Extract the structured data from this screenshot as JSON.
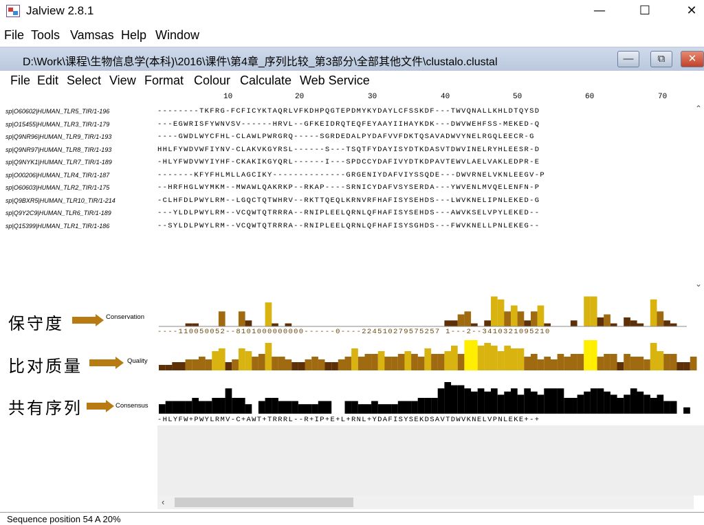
{
  "window": {
    "title": "Jalview 2.8.1",
    "controls": {
      "minimize": "—",
      "maximize": "☐",
      "close": "✕"
    }
  },
  "main_menu": [
    "File",
    "Tools",
    "Vamsas",
    "Help",
    "Window"
  ],
  "alignment_window": {
    "title": "D:\\Work\\课程\\生物信息学(本科)\\2016\\课件\\第4章_序列比较_第3部分\\全部其他文件\\clustalo.clustal",
    "controls": {
      "minimize": "—",
      "restore": "⧉",
      "close": "✕"
    },
    "menu": [
      "File",
      "Edit",
      "Select",
      "View",
      "Format",
      "Colour",
      "Calculate",
      "Web Service"
    ]
  },
  "ruler": [
    "10",
    "20",
    "30",
    "40",
    "50",
    "60",
    "70"
  ],
  "sequences": [
    {
      "name": "sp|O60602|HUMAN_TLR5_TIR/1-196",
      "seq": "--------TKFRG-FCFICYKTAQRLVFKDHPQGTEPDMYKYDAYLCFSSKDF---TWVQNALLKHLDTQYSD"
    },
    {
      "name": "sp|O15455|HUMAN_TLR3_TIR/1-179",
      "seq": "---EGWRISFYWNVSV------HRVL--GFKEIDRQTEQFEYAAYIIHAYKDK---DWVWEHFSS-MEKED-Q"
    },
    {
      "name": "sp|Q9NR96|HUMAN_TLR9_TIR/1-193",
      "seq": "----GWDLWYCFHL-CLAWLPWRGRQ-----SGRDEDALPYDAFVVFDKTQSAVADWVYNELRGQLEECR-G"
    },
    {
      "name": "sp|Q9NR97|HUMAN_TLR8_TIR/1-193",
      "seq": "HHLFYWDVWFIYNV-CLAKVKGYRSL------S---TSQTFYDAYISYDTKDASVTDWVINELRYHLEESR-D"
    },
    {
      "name": "sp|Q9NYK1|HUMAN_TLR7_TIR/1-189",
      "seq": "-HLYFWDVWYIYHF-CKAKIKGYQRL------I---SPDCCYDAFIVYDTKDPAVTEWVLAELVAKLEDPR-E"
    },
    {
      "name": "sp|O00206|HUMAN_TLR4_TIR/1-187",
      "seq": "-------KFYFHLMLLAGCIKY--------------GRGENIYDAFVIYSSQDE---DWVRNELVKNLEEGV-P"
    },
    {
      "name": "sp|O60603|HUMAN_TLR2_TIR/1-175",
      "seq": "--HRFHGLWYMKM--MWAWLQAKRKP--RKAP----SRNICYDAFVSYSERDA---YWVENLMVQELENFN-P"
    },
    {
      "name": "sp|Q9BXR5|HUMAN_TLR10_TIR/1-214",
      "seq": "-CLHFDLPWYLRM--LGQCTQTWHRV--RKTTQEQLKRNVRFHAFISYSEHDS---LWVKNELIPNLEKED-G"
    },
    {
      "name": "sp|Q9Y2C9|HUMAN_TLR6_TIR/1-189",
      "seq": "---YLDLPWYLRM--VCQWTQTRRRA--RNIPLEELQRNLQFHAFISYSEHDS---AWVKSELVPYLEKED--"
    },
    {
      "name": "sp|Q15399|HUMAN_TLR1_TIR/1-186",
      "seq": "--SYLDLPWYLRM--VCQWTQTRRRA--RNIPLEELQRNLQFHAFISYSGHDS---FWVKNELLPNLEKEG--"
    }
  ],
  "annotations": {
    "conservation": {
      "label_cn": "保守度",
      "tag": "Conservation",
      "string": "----110050052--8101000000000------0----224510279575257 1---2--3410321095210",
      "values": [
        0,
        0,
        0,
        0,
        1,
        1,
        0,
        0,
        0,
        5,
        0,
        0,
        5,
        2,
        0,
        0,
        8,
        1,
        0,
        1,
        0,
        0,
        0,
        0,
        0,
        0,
        0,
        0,
        0,
        0,
        0,
        0,
        0,
        0,
        0,
        0,
        0,
        0,
        0,
        0,
        0,
        0,
        0,
        2,
        2,
        4,
        5,
        1,
        0,
        2,
        10,
        9,
        5,
        7,
        5,
        2,
        5,
        7,
        1,
        0,
        0,
        0,
        2,
        0,
        10,
        10,
        3,
        4,
        1,
        0,
        3,
        2,
        1,
        0,
        9,
        5,
        2,
        1,
        0
      ],
      "max": 11
    },
    "quality": {
      "label_cn": "比对质量",
      "tag": "Quality",
      "values": [
        2,
        2,
        3,
        3,
        4,
        4,
        5,
        4,
        7,
        8,
        3,
        4,
        8,
        7,
        5,
        6,
        10,
        5,
        5,
        4,
        3,
        3,
        4,
        5,
        4,
        3,
        3,
        4,
        5,
        8,
        5,
        6,
        6,
        7,
        5,
        5,
        6,
        7,
        6,
        5,
        8,
        6,
        6,
        7,
        9,
        6,
        11,
        11,
        9,
        10,
        9,
        7,
        9,
        8,
        8,
        5,
        6,
        4,
        5,
        4,
        6,
        5,
        6,
        6,
        11,
        11,
        5,
        6,
        6,
        3,
        6,
        5,
        5,
        4,
        10,
        7,
        6,
        6,
        3,
        3,
        5
      ]
    },
    "consensus": {
      "label_cn": "共有序列",
      "tag": "Consensus",
      "string": "-HLYFW+PWYLRMV-C+AWT+TRRRL--R+IP+E+L+RNL+YDAFISYSEKDSAVTDWVKNELVPNLEKE+-+",
      "values": [
        3,
        4,
        4,
        4,
        4,
        5,
        4,
        4,
        5,
        5,
        8,
        5,
        5,
        3,
        0,
        4,
        5,
        5,
        4,
        4,
        4,
        3,
        3,
        3,
        4,
        4,
        0,
        0,
        4,
        4,
        3,
        3,
        4,
        3,
        3,
        3,
        4,
        4,
        4,
        5,
        5,
        5,
        8,
        10,
        9,
        9,
        8,
        7,
        8,
        7,
        8,
        6,
        7,
        8,
        6,
        8,
        7,
        6,
        8,
        8,
        8,
        5,
        5,
        6,
        7,
        8,
        8,
        7,
        6,
        5,
        6,
        8,
        7,
        6,
        5,
        6,
        4,
        4,
        0,
        2
      ]
    }
  },
  "colors": {
    "cons_low": "#5e3008",
    "cons_mid": "#a06a10",
    "cons_high": "#d9b410",
    "cons_max": "#ffee00",
    "consensus_bar": "#000000"
  },
  "status": "Sequence position 54  A 20%"
}
